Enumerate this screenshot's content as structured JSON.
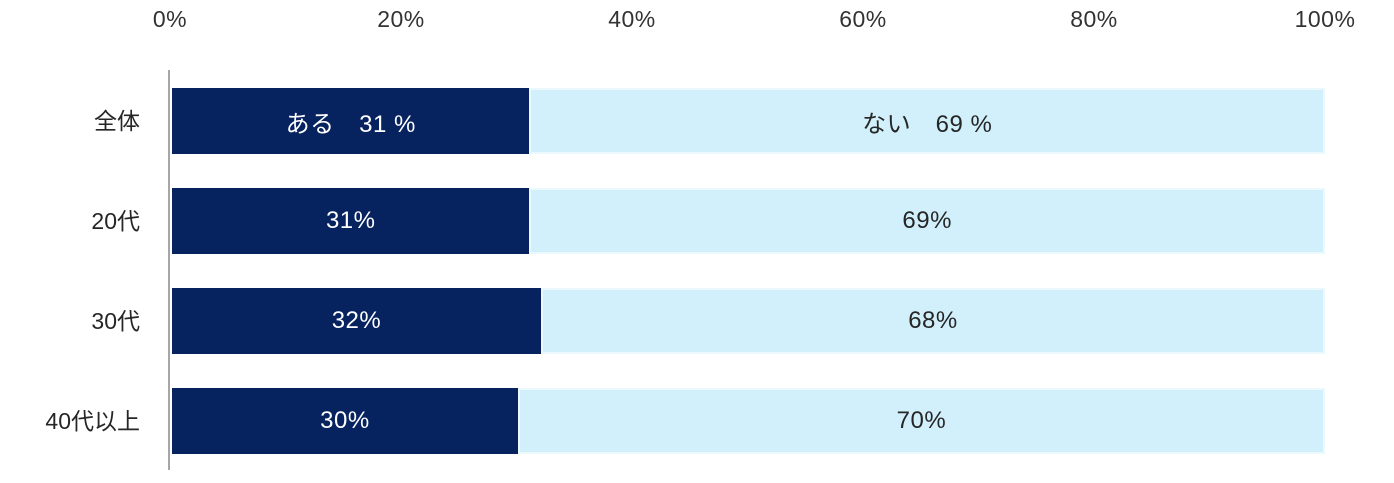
{
  "chart_data": {
    "type": "bar",
    "orientation": "horizontal",
    "stacked": true,
    "title": "",
    "categories": [
      "全体",
      "20代",
      "30代",
      "40代以上"
    ],
    "series": [
      {
        "name": "ある",
        "color": "#06225F",
        "text_color": "#ffffff",
        "values": [
          31,
          31,
          32,
          30
        ]
      },
      {
        "name": "ない",
        "color": "#D2F0FB",
        "text_color": "#262626",
        "values": [
          69,
          69,
          68,
          70
        ]
      }
    ],
    "bar_labels": [
      [
        "ある　31 %",
        "ない　69 %"
      ],
      [
        "31%",
        "69%"
      ],
      [
        "32%",
        "68%"
      ],
      [
        "30%",
        "70%"
      ]
    ],
    "x_axis": {
      "position": "top",
      "min": 0,
      "max": 100,
      "ticks": [
        "0%",
        "20%",
        "40%",
        "60%",
        "80%",
        "100%"
      ]
    },
    "axis_line_color": "#A6A6A6",
    "tick_label_color": "#333333",
    "grid": "off",
    "legend": "none"
  }
}
